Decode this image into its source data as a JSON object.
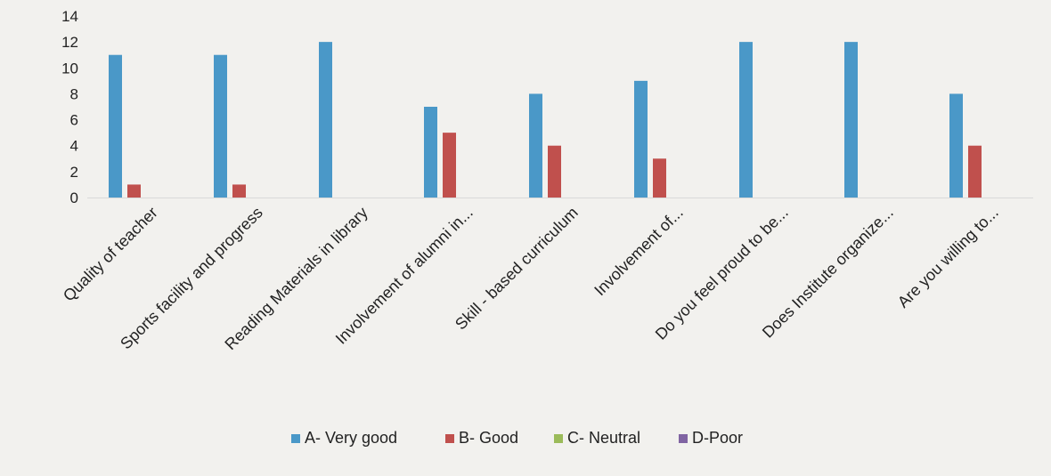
{
  "chart_data": {
    "type": "bar",
    "title": "",
    "xlabel": "",
    "ylabel": "",
    "ylim": [
      0,
      14
    ],
    "yticks": [
      0,
      2,
      4,
      6,
      8,
      10,
      12,
      14
    ],
    "grid": false,
    "legend_position": "bottom",
    "categories": [
      "Quality of teacher",
      "Sports facility and progress",
      "Reading Materials in library",
      "Involvement of alumni in...",
      "Skill - based curriculum",
      "Involvement of...",
      "Do you feel proud to be...",
      "Does Institute organize...",
      "Are you willing to..."
    ],
    "series": [
      {
        "name": "A- Very good",
        "color": "#4a98c8",
        "values": [
          11,
          11,
          12,
          7,
          8,
          9,
          12,
          12,
          8
        ]
      },
      {
        "name": "B- Good",
        "color": "#c0504d",
        "values": [
          1,
          1,
          0,
          5,
          4,
          3,
          0,
          0,
          4
        ]
      },
      {
        "name": "C- Neutral",
        "color": "#9bbb59",
        "values": [
          0,
          0,
          0,
          0,
          0,
          0,
          0,
          0,
          0
        ]
      },
      {
        "name": "D-Poor",
        "color": "#8064a2",
        "values": [
          0,
          0,
          0,
          0,
          0,
          0,
          0,
          0,
          0
        ]
      }
    ]
  }
}
